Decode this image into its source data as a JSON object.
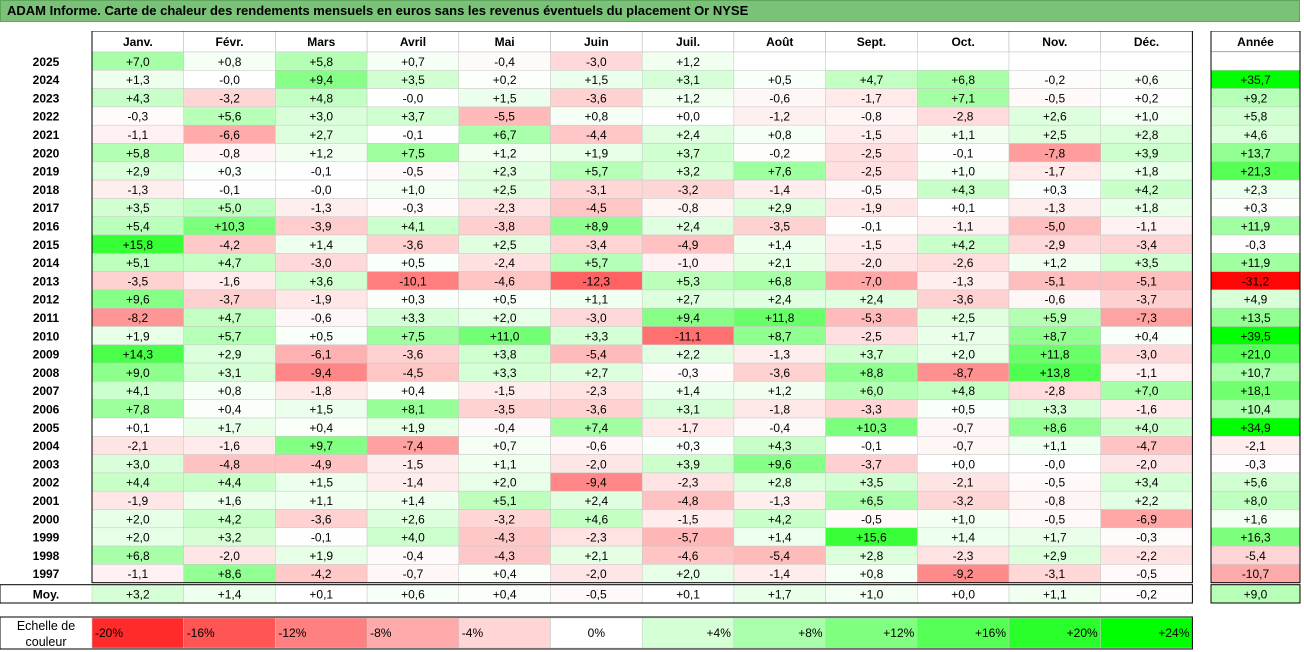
{
  "title": "ADAM Informe. Carte de chaleur des rendements mensuels en euros sans les revenus éventuels du placement Or NYSE",
  "chart_data": {
    "type": "heatmap",
    "columns": [
      "Janv.",
      "Févr.",
      "Mars",
      "Avril",
      "Mai",
      "Juin",
      "Juil.",
      "Août",
      "Sept.",
      "Oct.",
      "Nov.",
      "Déc."
    ],
    "year_column": "Année",
    "rows": [
      {
        "label": "2025",
        "values": [
          "+7,0",
          "+0,8",
          "+5,8",
          "+0,7",
          "-0,4",
          "-3,0",
          "+1,2",
          "",
          "",
          "",
          "",
          ""
        ],
        "year": ""
      },
      {
        "label": "2024",
        "values": [
          "+1,3",
          "-0,0",
          "+9,4",
          "+3,5",
          "+0,2",
          "+1,5",
          "+3,1",
          "+0,5",
          "+4,7",
          "+6,8",
          "-0,2",
          "+0,6"
        ],
        "year": "+35,7"
      },
      {
        "label": "2023",
        "values": [
          "+4,3",
          "-3,2",
          "+4,8",
          "-0,0",
          "+1,5",
          "-3,6",
          "+1,2",
          "-0,6",
          "-1,7",
          "+7,1",
          "-0,5",
          "+0,2"
        ],
        "year": "+9,2"
      },
      {
        "label": "2022",
        "values": [
          "-0,3",
          "+5,6",
          "+3,0",
          "+3,7",
          "-5,5",
          "+0,8",
          "+0,0",
          "-1,2",
          "-0,8",
          "-2,8",
          "+2,6",
          "+1,0"
        ],
        "year": "+5,8"
      },
      {
        "label": "2021",
        "values": [
          "-1,1",
          "-6,6",
          "+2,7",
          "-0,1",
          "+6,7",
          "-4,4",
          "+2,4",
          "+0,8",
          "-1,5",
          "+1,1",
          "+2,5",
          "+2,8"
        ],
        "year": "+4,6"
      },
      {
        "label": "2020",
        "values": [
          "+5,8",
          "-0,8",
          "+1,2",
          "+7,5",
          "+1,2",
          "+1,9",
          "+3,7",
          "-0,2",
          "-2,5",
          "-0,1",
          "-7,8",
          "+3,9"
        ],
        "year": "+13,7"
      },
      {
        "label": "2019",
        "values": [
          "+2,9",
          "+0,3",
          "-0,1",
          "-0,5",
          "+2,3",
          "+5,7",
          "+3,2",
          "+7,6",
          "-2,5",
          "+1,0",
          "-1,7",
          "+1,8"
        ],
        "year": "+21,3"
      },
      {
        "label": "2018",
        "values": [
          "-1,3",
          "-0,1",
          "-0,0",
          "+1,0",
          "+2,5",
          "-3,1",
          "-3,2",
          "-1,4",
          "-0,5",
          "+4,3",
          "+0,3",
          "+4,2"
        ],
        "year": "+2,3"
      },
      {
        "label": "2017",
        "values": [
          "+3,5",
          "+5,0",
          "-1,3",
          "-0,3",
          "-2,3",
          "-4,5",
          "-0,8",
          "+2,9",
          "-1,9",
          "+0,1",
          "-1,3",
          "+1,8"
        ],
        "year": "+0,3"
      },
      {
        "label": "2016",
        "values": [
          "+5,4",
          "+10,3",
          "-3,9",
          "+4,1",
          "-3,8",
          "+8,9",
          "+2,4",
          "-3,5",
          "-0,1",
          "-1,1",
          "-5,0",
          "-1,1"
        ],
        "year": "+11,9"
      },
      {
        "label": "2015",
        "values": [
          "+15,8",
          "-4,2",
          "+1,4",
          "-3,6",
          "+2,5",
          "-3,4",
          "-4,9",
          "+1,4",
          "-1,5",
          "+4,2",
          "-2,9",
          "-3,4"
        ],
        "year": "-0,3"
      },
      {
        "label": "2014",
        "values": [
          "+5,1",
          "+4,7",
          "-3,0",
          "+0,5",
          "-2,4",
          "+5,7",
          "-1,0",
          "+2,1",
          "-2,0",
          "-2,6",
          "+1,2",
          "+3,5"
        ],
        "year": "+11,9"
      },
      {
        "label": "2013",
        "values": [
          "-3,5",
          "-1,6",
          "+3,6",
          "-10,1",
          "-4,6",
          "-12,3",
          "+5,3",
          "+6,8",
          "-7,0",
          "-1,3",
          "-5,1",
          "-5,1"
        ],
        "year": "-31,2"
      },
      {
        "label": "2012",
        "values": [
          "+9,6",
          "-3,7",
          "-1,9",
          "+0,3",
          "+0,5",
          "+1,1",
          "+2,7",
          "+2,4",
          "+2,4",
          "-3,6",
          "-0,6",
          "-3,7"
        ],
        "year": "+4,9"
      },
      {
        "label": "2011",
        "values": [
          "-8,2",
          "+4,7",
          "-0,6",
          "+3,3",
          "+2,0",
          "-3,0",
          "+9,4",
          "+11,8",
          "-5,3",
          "+2,5",
          "+5,9",
          "-7,3"
        ],
        "year": "+13,5"
      },
      {
        "label": "2010",
        "values": [
          "+1,9",
          "+5,7",
          "+0,5",
          "+7,5",
          "+11,0",
          "+3,3",
          "-11,1",
          "+8,7",
          "-2,5",
          "+1,7",
          "+8,7",
          "+0,4"
        ],
        "year": "+39,5"
      },
      {
        "label": "2009",
        "values": [
          "+14,3",
          "+2,9",
          "-6,1",
          "-3,6",
          "+3,8",
          "-5,4",
          "+2,2",
          "-1,3",
          "+3,7",
          "+2,0",
          "+11,8",
          "-3,0"
        ],
        "year": "+21,0"
      },
      {
        "label": "2008",
        "values": [
          "+9,0",
          "+3,1",
          "-9,4",
          "-4,5",
          "+3,3",
          "+2,7",
          "-0,3",
          "-3,6",
          "+8,8",
          "-8,7",
          "+13,8",
          "-1,1"
        ],
        "year": "+10,7"
      },
      {
        "label": "2007",
        "values": [
          "+4,1",
          "+0,8",
          "-1,8",
          "+0,4",
          "-1,5",
          "-2,3",
          "+1,4",
          "+1,2",
          "+6,0",
          "+4,8",
          "-2,8",
          "+7,0"
        ],
        "year": "+18,1"
      },
      {
        "label": "2006",
        "values": [
          "+7,8",
          "+0,4",
          "+1,5",
          "+8,1",
          "-3,5",
          "-3,6",
          "+3,1",
          "-1,8",
          "-3,3",
          "+0,5",
          "+3,3",
          "-1,6"
        ],
        "year": "+10,4"
      },
      {
        "label": "2005",
        "values": [
          "+0,1",
          "+1,7",
          "+0,4",
          "+1,9",
          "-0,4",
          "+7,4",
          "-1,7",
          "-0,4",
          "+10,3",
          "-0,7",
          "+8,6",
          "+4,0"
        ],
        "year": "+34,9"
      },
      {
        "label": "2004",
        "values": [
          "-2,1",
          "-1,6",
          "+9,7",
          "-7,4",
          "+0,7",
          "-0,6",
          "+0,3",
          "+4,3",
          "-0,1",
          "-0,7",
          "+1,1",
          "-4,7"
        ],
        "year": "-2,1"
      },
      {
        "label": "2003",
        "values": [
          "+3,0",
          "-4,8",
          "-4,9",
          "-1,5",
          "+1,1",
          "-2,0",
          "+3,9",
          "+9,6",
          "-3,7",
          "+0,0",
          "-0,0",
          "-2,0"
        ],
        "year": "-0,3"
      },
      {
        "label": "2002",
        "values": [
          "+4,4",
          "+4,4",
          "+1,5",
          "-1,4",
          "+2,0",
          "-9,4",
          "-2,3",
          "+2,8",
          "+3,5",
          "-2,1",
          "-0,5",
          "+3,4"
        ],
        "year": "+5,6"
      },
      {
        "label": "2001",
        "values": [
          "-1,9",
          "+1,6",
          "+1,1",
          "+1,4",
          "+5,1",
          "+2,4",
          "-4,8",
          "-1,3",
          "+6,5",
          "-3,2",
          "-0,8",
          "+2,2"
        ],
        "year": "+8,0"
      },
      {
        "label": "2000",
        "values": [
          "+2,0",
          "+4,2",
          "-3,6",
          "+2,6",
          "-3,2",
          "+4,6",
          "-1,5",
          "+4,2",
          "-0,5",
          "+1,0",
          "-0,5",
          "-6,9"
        ],
        "year": "+1,6"
      },
      {
        "label": "1999",
        "values": [
          "+2,0",
          "+3,2",
          "-0,1",
          "+4,0",
          "-4,3",
          "-2,3",
          "-5,7",
          "+1,4",
          "+15,6",
          "+1,4",
          "+1,7",
          "-0,3"
        ],
        "year": "+16,3"
      },
      {
        "label": "1998",
        "values": [
          "+6,8",
          "-2,0",
          "+1,9",
          "-0,4",
          "-4,3",
          "+2,1",
          "-4,6",
          "-5,4",
          "+2,8",
          "-2,3",
          "+2,9",
          "-2,2"
        ],
        "year": "-5,4"
      },
      {
        "label": "1997",
        "values": [
          "-1,1",
          "+8,6",
          "-4,2",
          "-0,7",
          "+0,4",
          "-2,0",
          "+2,0",
          "-1,4",
          "+0,8",
          "-9,2",
          "-3,1",
          "-0,5"
        ],
        "year": "-10,7"
      }
    ],
    "average": {
      "label": "Moy.",
      "values": [
        "+3,2",
        "+1,4",
        "+0,1",
        "+0,6",
        "+0,4",
        "-0,5",
        "+0,1",
        "+1,7",
        "+1,0",
        "+0,0",
        "+1,1",
        "-0,2"
      ],
      "year": "+9,0"
    },
    "scale": {
      "label": "Echelle de couleur",
      "stops": [
        {
          "label": "-20%",
          "value": -20
        },
        {
          "label": "-16%",
          "value": -16
        },
        {
          "label": "-12%",
          "value": -12
        },
        {
          "label": "-8%",
          "value": -8
        },
        {
          "label": "-4%",
          "value": -4
        },
        {
          "label": "0%",
          "value": 0
        },
        {
          "label": "+4%",
          "value": 4
        },
        {
          "label": "+8%",
          "value": 8
        },
        {
          "label": "+12%",
          "value": 12
        },
        {
          "label": "+16%",
          "value": 16
        },
        {
          "label": "+20%",
          "value": 20
        },
        {
          "label": "+24%",
          "value": 24
        }
      ]
    },
    "colors": {
      "negative_max": "#ff0000",
      "zero": "#ffffff",
      "positive_max": "#00ff00"
    }
  }
}
